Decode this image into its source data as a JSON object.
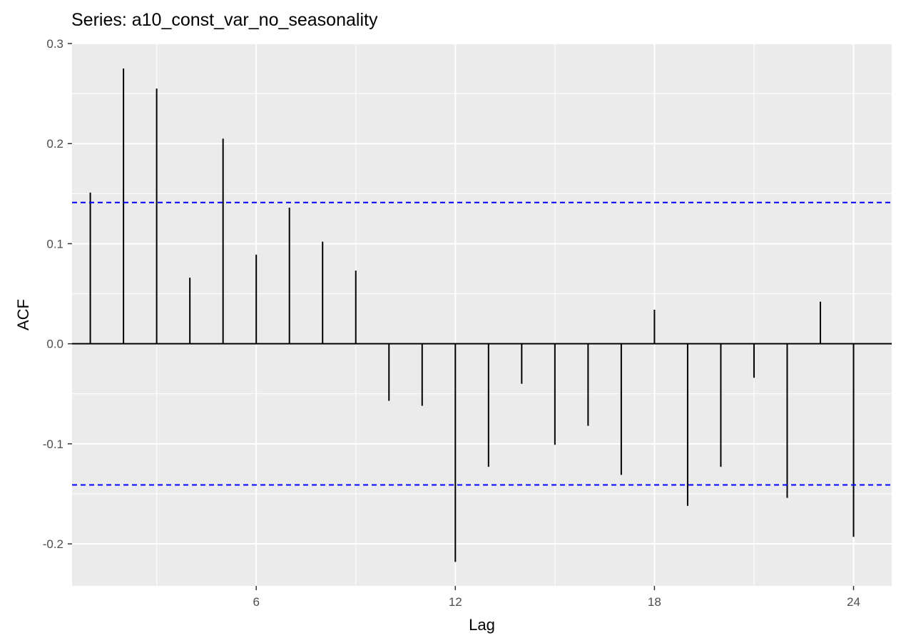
{
  "chart_data": {
    "type": "acf",
    "title": "Series: a10_const_var_no_seasonality",
    "xlabel": "Lag",
    "ylabel": "ACF",
    "xlim": [
      0.45,
      25.15
    ],
    "ylim": [
      -0.242,
      0.3
    ],
    "x_ticks": [
      6,
      12,
      18,
      24
    ],
    "x_tick_labels": [
      "6",
      "12",
      "18",
      "24"
    ],
    "y_ticks": [
      0.3,
      0.2,
      0.1,
      0.0,
      -0.1,
      -0.2
    ],
    "y_tick_labels": [
      "0.3",
      "0.2",
      "0.1",
      "0.0",
      "-0.1",
      "-0.2"
    ],
    "lags": [
      1,
      2,
      3,
      4,
      5,
      6,
      7,
      8,
      9,
      10,
      11,
      12,
      13,
      14,
      15,
      16,
      17,
      18,
      19,
      20,
      21,
      22,
      23,
      24
    ],
    "acf": [
      0.151,
      0.275,
      0.255,
      0.066,
      0.205,
      0.089,
      0.136,
      0.102,
      0.073,
      -0.057,
      -0.062,
      -0.218,
      -0.123,
      -0.04,
      -0.101,
      -0.082,
      -0.131,
      0.034,
      -0.162,
      -0.123,
      -0.034,
      -0.154,
      0.042,
      -0.193
    ],
    "confidence_bound": 0.1411,
    "colors": {
      "panel": "#ebebeb",
      "grid": "#ffffff",
      "segment": "#000000",
      "zero_line": "#000000",
      "bounds": "#0000ff"
    },
    "grid": true,
    "legend": "none"
  }
}
